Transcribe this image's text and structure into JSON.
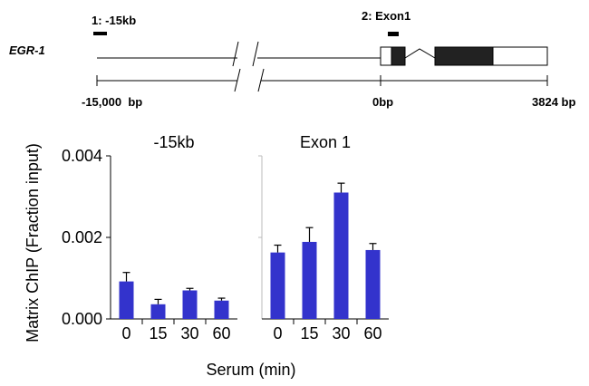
{
  "gene_map": {
    "gene_label": "EGR-1",
    "region_1_label": "1: -15kb",
    "region_2_label": "2: Exon1",
    "coord_start": "-15,000  bp",
    "coord_zero": "0bp",
    "coord_end": "3824 bp"
  },
  "chart_data": [
    {
      "type": "bar",
      "title": "-15kb",
      "ylabel": "Matrix ChIP (Fraction input)",
      "xlabel": "Serum (min)",
      "ylim": [
        0,
        0.004
      ],
      "yticks": [
        "0.000",
        "0.002",
        "0.004"
      ],
      "categories": [
        "0",
        "15",
        "30",
        "60"
      ],
      "values": [
        0.00092,
        0.00036,
        0.0007,
        0.00045
      ],
      "errors": [
        0.00022,
        0.00012,
        5e-05,
        6e-05
      ],
      "bar_color": "#3333cc"
    },
    {
      "type": "bar",
      "title": "Exon 1",
      "xlabel": "Serum (min)",
      "ylim": [
        0,
        0.004
      ],
      "categories": [
        "0",
        "15",
        "30",
        "60"
      ],
      "values": [
        0.00163,
        0.00189,
        0.0031,
        0.00169
      ],
      "errors": [
        0.00018,
        0.00035,
        0.00023,
        0.00016
      ],
      "bar_color": "#3333cc"
    }
  ]
}
